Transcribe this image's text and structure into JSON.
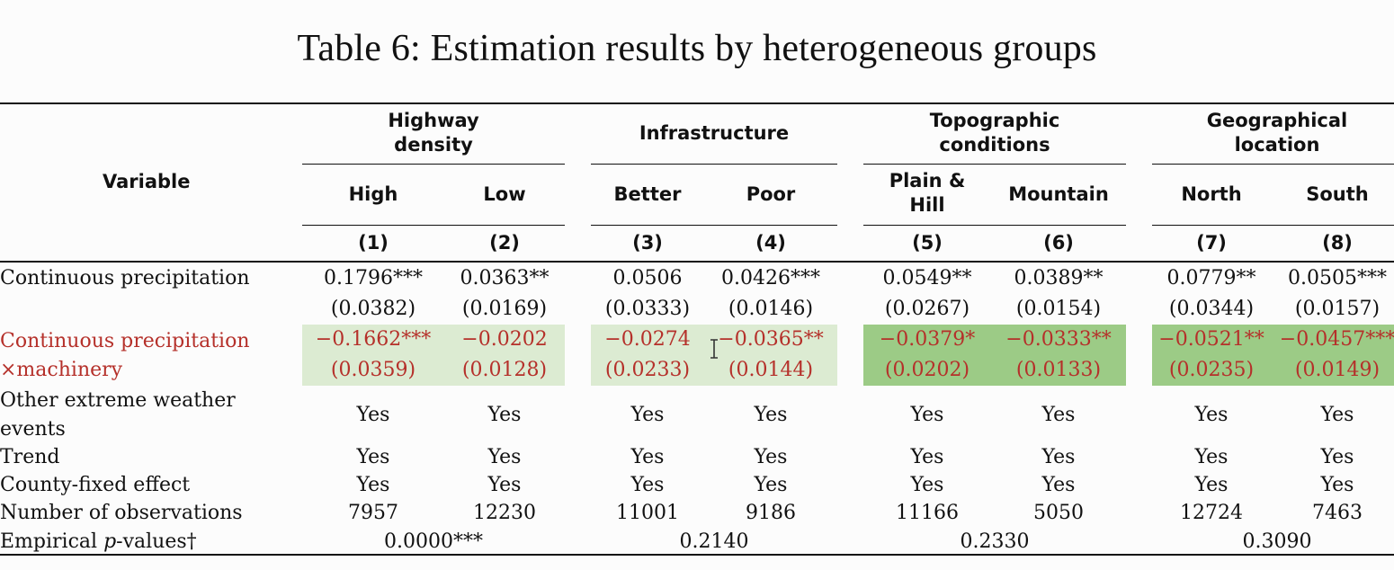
{
  "title": "Table 6: Estimation results by heterogeneous groups",
  "header": {
    "variable": "Variable",
    "groups": [
      "Highway\ndensity",
      "Infrastructure",
      "Topographic\nconditions",
      "Geographical\nlocation"
    ],
    "subgroups": [
      "High",
      "Low",
      "Better",
      "Poor",
      "Plain &\nHill",
      "Mountain",
      "North",
      "South"
    ],
    "column_numbers": [
      "(1)",
      "(2)",
      "(3)",
      "(4)",
      "(5)",
      "(6)",
      "(7)",
      "(8)"
    ]
  },
  "rows": {
    "continuous_precipitation": {
      "label": "Continuous precipitation",
      "coef": [
        "0.1796***",
        "0.0363**",
        "0.0506",
        "0.0426***",
        "0.0549**",
        "0.0389**",
        "0.0779**",
        "0.0505***"
      ],
      "se": [
        "(0.0382)",
        "(0.0169)",
        "(0.0333)",
        "(0.0146)",
        "(0.0267)",
        "(0.0154)",
        "(0.0344)",
        "(0.0157)"
      ]
    },
    "interaction": {
      "label_line1": "Continuous precipitation",
      "label_line2": "×machinery",
      "coef": [
        "−0.1662***",
        "−0.0202",
        "−0.0274",
        "−0.0365**",
        "−0.0379*",
        "−0.0333**",
        "−0.0521**",
        "−0.0457***"
      ],
      "se": [
        "(0.0359)",
        "(0.0128)",
        "(0.0233)",
        "(0.0144)",
        "(0.0202)",
        "(0.0133)",
        "(0.0235)",
        "(0.0149)"
      ]
    },
    "other_extreme": {
      "label_line1": "Other extreme weather",
      "label_line2": "events",
      "values": [
        "Yes",
        "Yes",
        "Yes",
        "Yes",
        "Yes",
        "Yes",
        "Yes",
        "Yes"
      ]
    },
    "trend": {
      "label": "Trend",
      "values": [
        "Yes",
        "Yes",
        "Yes",
        "Yes",
        "Yes",
        "Yes",
        "Yes",
        "Yes"
      ]
    },
    "county_fe": {
      "label": "County-fixed effect",
      "values": [
        "Yes",
        "Yes",
        "Yes",
        "Yes",
        "Yes",
        "Yes",
        "Yes",
        "Yes"
      ]
    },
    "observations": {
      "label": "Number of observations",
      "values": [
        "7957",
        "12230",
        "11001",
        "9186",
        "11166",
        "5050",
        "12724",
        "7463"
      ]
    },
    "pvalues": {
      "label_prefix": "Empirical ",
      "label_italic": "p",
      "label_suffix": "-values†",
      "values": [
        "0.0000***",
        "0.2140",
        "0.2330",
        "0.3090"
      ]
    }
  },
  "colors": {
    "highlight_text": "#b5302a",
    "shade_light": "#dcebd2",
    "shade_dark": "#9ccb86"
  }
}
